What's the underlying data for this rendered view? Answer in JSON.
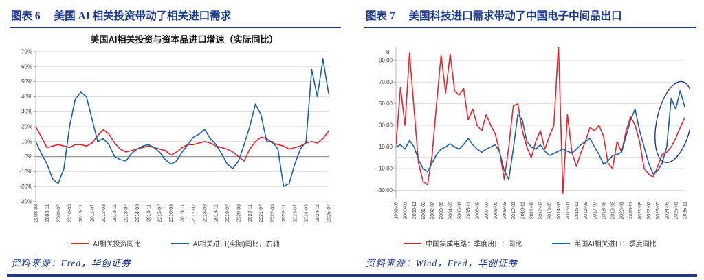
{
  "page": {
    "accent": "#1c3a8c",
    "background": "#ffffff",
    "line_red": "#e8232b",
    "line_blue": "#1a5fa8"
  },
  "panels": [
    {
      "header_tag": "图表 6",
      "header_title": "美国 AI 相关投资带动了相关进口需求",
      "chart_title": "美国AI相关投资与资本品进口增速（实际同比）",
      "legend": [
        {
          "label": "AI相关投资同比",
          "color": "#e8232b"
        },
        {
          "label": "AI相关进口(实际)同比，右轴",
          "color": "#1a5fa8"
        }
      ],
      "source": "资料来源：Fred，华创证券"
    },
    {
      "header_tag": "图表 7",
      "header_title": "美国科技进口需求带动了中国电子中间品出口",
      "chart_title": "",
      "legend": [
        {
          "label": "中国集成电路：季度出口：同比",
          "color": "#e8232b"
        },
        {
          "label": "美国AI相关进口：季度同比",
          "color": "#1a5fa8"
        }
      ],
      "source": "资料来源：Wind，Fred，华创证券"
    }
  ],
  "chart_data": [
    {
      "type": "line",
      "title": "美国AI相关投资与资本品进口增速（实际同比）",
      "xlabel": "",
      "ylabel": "",
      "ylim": [
        -30,
        70
      ],
      "yticks": [
        -30,
        -20,
        -10,
        0,
        10,
        20,
        30,
        40,
        50,
        60,
        70
      ],
      "ytick_format": "percent",
      "grid": true,
      "legend_position": "bottom",
      "label_every": 2,
      "x_labels": [
        "2008-03",
        "2008-11",
        "2009-07",
        "2010-03",
        "2010-11",
        "2011-07",
        "2012-03",
        "2012-11",
        "2013-07",
        "2014-03",
        "2014-11",
        "2015-07",
        "2016-03",
        "2016-11",
        "2017-07",
        "2018-03",
        "2018-11",
        "2019-07",
        "2020-03",
        "2020-11",
        "2021-07",
        "2022-03",
        "2022-11",
        "2023-07",
        "2024-03",
        "2024-11",
        "2025-07"
      ],
      "series": [
        {
          "name": "AI相关投资同比",
          "color": "#e8232b",
          "values": [
            20,
            13,
            6,
            7,
            8,
            7,
            6,
            8,
            8,
            7,
            9,
            14,
            18,
            15,
            9,
            5,
            3,
            4,
            5,
            6,
            7,
            6,
            5,
            4,
            1,
            3,
            6,
            8,
            8,
            9,
            10,
            9,
            7,
            6,
            5,
            3,
            0,
            -3,
            5,
            10,
            13,
            12,
            9,
            8,
            7,
            5,
            6,
            7,
            9,
            10,
            9,
            12,
            17
          ]
        },
        {
          "name": "AI相关进口(实际)同比，右轴",
          "color": "#1a5fa8",
          "values": [
            10,
            2,
            -5,
            -15,
            -18,
            -8,
            20,
            38,
            43,
            40,
            25,
            10,
            12,
            8,
            0,
            -2,
            -3,
            2,
            5,
            7,
            8,
            6,
            3,
            -2,
            -5,
            -3,
            3,
            8,
            13,
            15,
            18,
            12,
            8,
            2,
            -5,
            -8,
            -3,
            8,
            20,
            35,
            28,
            10,
            10,
            5,
            -20,
            -18,
            -5,
            5,
            10,
            58,
            40,
            65,
            42
          ]
        }
      ]
    },
    {
      "type": "line",
      "title": "",
      "xlabel": "",
      "ylabel": "%",
      "ylim": [
        -38,
        102
      ],
      "yticks": [
        -30,
        -10,
        10,
        30,
        50,
        70,
        90
      ],
      "ytick_format": "decimal2",
      "grid": true,
      "legend_position": "bottom",
      "label_every": 2,
      "x_labels": [
        "1999-03",
        "2000-01",
        "2000-11",
        "2001-09",
        "2002-07",
        "2003-05",
        "2004-03",
        "2005-01",
        "2005-11",
        "2006-09",
        "2007-07",
        "2008-05",
        "2009-03",
        "2010-01",
        "2010-11",
        "2011-09",
        "2012-07",
        "2013-05",
        "2014-03",
        "2015-01",
        "2015-11",
        "2016-09",
        "2017-07",
        "2018-05",
        "2019-03",
        "2020-01",
        "2020-11",
        "2021-09",
        "2022-07",
        "2023-05",
        "2024-03",
        "2025-01",
        "2025-11"
      ],
      "series": [
        {
          "name": "中国集成电路：季度出口：同比",
          "color": "#e8232b",
          "values": [
            12,
            65,
            30,
            97,
            45,
            -5,
            -22,
            -25,
            2,
            50,
            95,
            60,
            96,
            62,
            58,
            64,
            35,
            45,
            30,
            25,
            40,
            30,
            22,
            5,
            -20,
            10,
            48,
            50,
            25,
            10,
            0,
            15,
            25,
            8,
            20,
            30,
            105,
            -33,
            40,
            5,
            -8,
            5,
            15,
            28,
            25,
            30,
            20,
            -5,
            -10,
            15,
            5,
            25,
            38,
            30,
            15,
            -10,
            -15,
            -18,
            -8,
            3,
            5,
            10,
            18,
            28,
            37
          ]
        },
        {
          "name": "美国AI相关进口：季度同比",
          "color": "#1a5fa8",
          "values": [
            10,
            12,
            8,
            16,
            10,
            -2,
            -10,
            -13,
            -5,
            3,
            8,
            10,
            13,
            10,
            8,
            12,
            18,
            12,
            8,
            5,
            8,
            10,
            12,
            5,
            -12,
            -20,
            8,
            40,
            35,
            15,
            10,
            8,
            12,
            6,
            2,
            4,
            6,
            8,
            6,
            4,
            8,
            12,
            15,
            18,
            10,
            3,
            -6,
            -3,
            2,
            3,
            5,
            20,
            35,
            45,
            25,
            10,
            -5,
            -15,
            -12,
            -5,
            10,
            55,
            45,
            62,
            47
          ]
        }
      ],
      "annotation_ellipse": {
        "cx_idx": 61.6,
        "cy_val": 33,
        "rx": 25,
        "ry": 60,
        "rotate": 12,
        "color": "#1c3a8c"
      }
    }
  ]
}
